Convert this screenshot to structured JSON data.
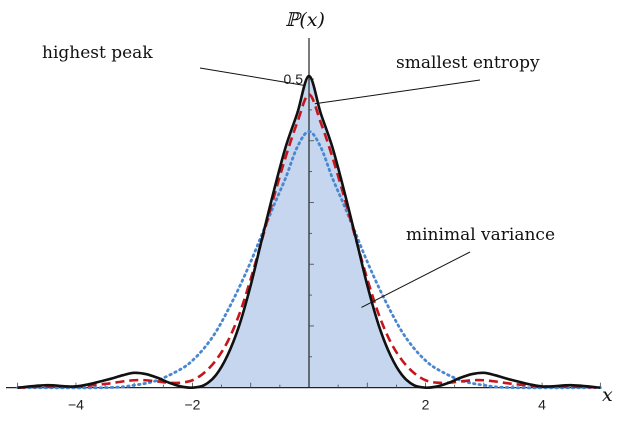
{
  "chart_data": {
    "type": "line",
    "xlabel": "x",
    "ylabel": "ℙ(x)",
    "xlim": [
      -5.2,
      5.2
    ],
    "ylim": [
      -0.02,
      0.56
    ],
    "x_ticks": [
      {
        "value": -4,
        "label": "−4"
      },
      {
        "value": -2,
        "label": "−2"
      },
      {
        "value": 2,
        "label": "2"
      },
      {
        "value": 4,
        "label": "4"
      }
    ],
    "y_ticks": [
      {
        "value": 0.5,
        "label": "0.5"
      }
    ],
    "series": [
      {
        "style": "solid",
        "color": "#111111",
        "fill": "#c5d6ee",
        "points": [
          [
            -5.0,
            0.0
          ],
          [
            -4.5,
            0.004
          ],
          [
            -4.0,
            0.002
          ],
          [
            -3.5,
            0.012
          ],
          [
            -3.2,
            0.02
          ],
          [
            -3.0,
            0.024
          ],
          [
            -2.8,
            0.022
          ],
          [
            -2.6,
            0.016
          ],
          [
            -2.4,
            0.008
          ],
          [
            -2.2,
            0.002
          ],
          [
            -2.0,
            0.0
          ],
          [
            -1.8,
            0.004
          ],
          [
            -1.6,
            0.02
          ],
          [
            -1.4,
            0.052
          ],
          [
            -1.2,
            0.1
          ],
          [
            -1.0,
            0.166
          ],
          [
            -0.8,
            0.244
          ],
          [
            -0.6,
            0.32
          ],
          [
            -0.4,
            0.39
          ],
          [
            -0.2,
            0.445
          ],
          [
            0.0,
            0.505
          ],
          [
            0.2,
            0.445
          ],
          [
            0.4,
            0.39
          ],
          [
            0.6,
            0.32
          ],
          [
            0.8,
            0.244
          ],
          [
            1.0,
            0.166
          ],
          [
            1.2,
            0.1
          ],
          [
            1.4,
            0.052
          ],
          [
            1.6,
            0.02
          ],
          [
            1.8,
            0.004
          ],
          [
            2.0,
            0.0
          ],
          [
            2.2,
            0.002
          ],
          [
            2.4,
            0.008
          ],
          [
            2.6,
            0.016
          ],
          [
            2.8,
            0.022
          ],
          [
            3.0,
            0.024
          ],
          [
            3.2,
            0.02
          ],
          [
            3.5,
            0.012
          ],
          [
            4.0,
            0.002
          ],
          [
            4.5,
            0.004
          ],
          [
            5.0,
            0.0
          ]
        ]
      },
      {
        "style": "dashed",
        "color": "#c4161c",
        "points": [
          [
            -5.0,
            0.0
          ],
          [
            -4.5,
            0.002
          ],
          [
            -4.0,
            0.002
          ],
          [
            -3.5,
            0.006
          ],
          [
            -3.2,
            0.01
          ],
          [
            -3.0,
            0.012
          ],
          [
            -2.8,
            0.012
          ],
          [
            -2.6,
            0.01
          ],
          [
            -2.4,
            0.008
          ],
          [
            -2.2,
            0.008
          ],
          [
            -2.0,
            0.012
          ],
          [
            -1.8,
            0.024
          ],
          [
            -1.6,
            0.044
          ],
          [
            -1.4,
            0.074
          ],
          [
            -1.2,
            0.118
          ],
          [
            -1.0,
            0.176
          ],
          [
            -0.8,
            0.242
          ],
          [
            -0.6,
            0.31
          ],
          [
            -0.4,
            0.374
          ],
          [
            -0.2,
            0.43
          ],
          [
            0.0,
            0.475
          ],
          [
            0.2,
            0.43
          ],
          [
            0.4,
            0.374
          ],
          [
            0.6,
            0.31
          ],
          [
            0.8,
            0.242
          ],
          [
            1.0,
            0.176
          ],
          [
            1.2,
            0.118
          ],
          [
            1.4,
            0.074
          ],
          [
            1.6,
            0.044
          ],
          [
            1.8,
            0.024
          ],
          [
            2.0,
            0.012
          ],
          [
            2.2,
            0.008
          ],
          [
            2.4,
            0.008
          ],
          [
            2.6,
            0.01
          ],
          [
            2.8,
            0.012
          ],
          [
            3.0,
            0.012
          ],
          [
            3.2,
            0.01
          ],
          [
            3.5,
            0.006
          ],
          [
            4.0,
            0.002
          ],
          [
            4.5,
            0.002
          ],
          [
            5.0,
            0.0
          ]
        ]
      },
      {
        "style": "dotted",
        "color": "#4a87d0",
        "points": [
          [
            -5.0,
            0.0
          ],
          [
            -3.5,
            0.0
          ],
          [
            -3.0,
            0.004
          ],
          [
            -2.6,
            0.012
          ],
          [
            -2.2,
            0.03
          ],
          [
            -2.0,
            0.044
          ],
          [
            -1.8,
            0.064
          ],
          [
            -1.6,
            0.09
          ],
          [
            -1.4,
            0.124
          ],
          [
            -1.2,
            0.162
          ],
          [
            -1.0,
            0.204
          ],
          [
            -0.8,
            0.25
          ],
          [
            -0.6,
            0.296
          ],
          [
            -0.4,
            0.34
          ],
          [
            -0.2,
            0.39
          ],
          [
            0.0,
            0.415
          ],
          [
            0.2,
            0.39
          ],
          [
            0.4,
            0.34
          ],
          [
            0.6,
            0.296
          ],
          [
            0.8,
            0.25
          ],
          [
            1.0,
            0.204
          ],
          [
            1.2,
            0.162
          ],
          [
            1.4,
            0.124
          ],
          [
            1.6,
            0.09
          ],
          [
            1.8,
            0.064
          ],
          [
            2.0,
            0.044
          ],
          [
            2.2,
            0.03
          ],
          [
            2.6,
            0.012
          ],
          [
            3.0,
            0.004
          ],
          [
            3.5,
            0.0
          ],
          [
            5.0,
            0.0
          ]
        ]
      }
    ],
    "annotations": [
      {
        "text": "highest peak",
        "point": [
          -0.1,
          0.49
        ]
      },
      {
        "text": "smallest entropy",
        "point": [
          0.1,
          0.46
        ]
      },
      {
        "text": "minimal variance",
        "point": [
          0.9,
          0.13
        ]
      }
    ]
  }
}
